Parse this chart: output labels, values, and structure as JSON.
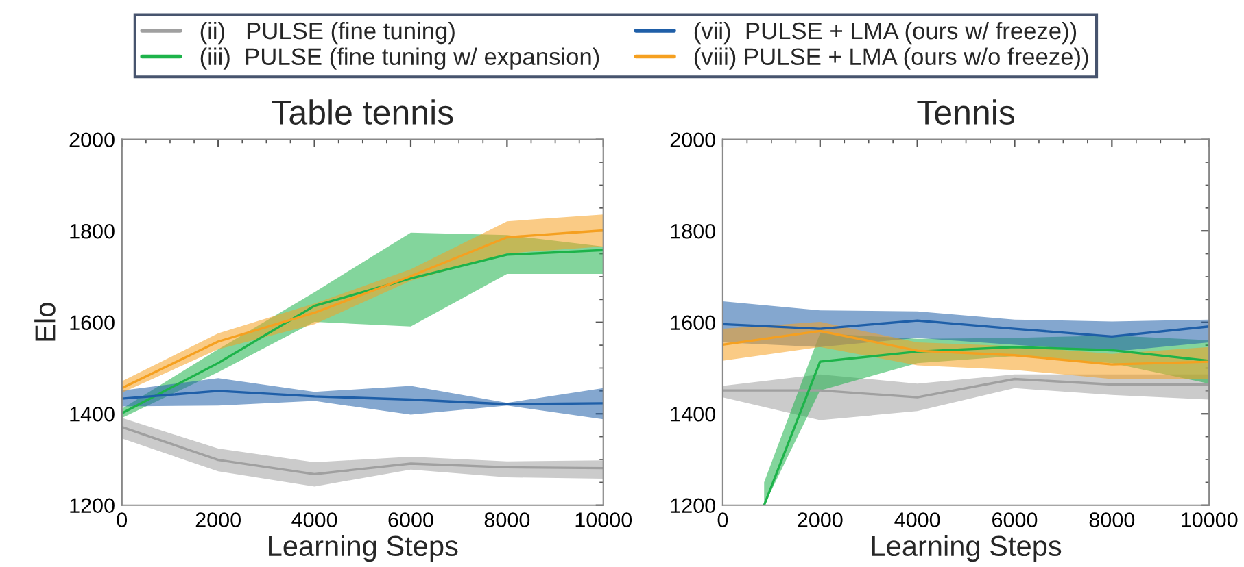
{
  "chart_data": [
    {
      "type": "line",
      "title": "Table tennis",
      "xlabel": "Learning Steps",
      "ylabel": "Elo",
      "x": [
        0,
        2000,
        4000,
        6000,
        8000,
        10000
      ],
      "xlim": [
        0,
        10000
      ],
      "ylim": [
        1200,
        2000
      ],
      "xticks": [
        0,
        2000,
        4000,
        6000,
        8000,
        10000
      ],
      "yticks": [
        1200,
        1400,
        1600,
        1800,
        2000
      ],
      "grid": false,
      "legend": "top",
      "marker": "none",
      "line_style": "solid",
      "series": [
        {
          "name": "(ii)   PULSE (fine tuning)",
          "color": "#a0a0a0",
          "values": [
            1371,
            1299,
            1268,
            1291,
            1283,
            1281
          ],
          "lower": [
            1346,
            1274,
            1241,
            1278,
            1261,
            1258
          ],
          "upper": [
            1391,
            1324,
            1294,
            1306,
            1296,
            1298
          ]
        },
        {
          "name": "(iii)  PULSE (fine tuning w/ expansion)",
          "color": "#1db34a",
          "values": [
            1401,
            1511,
            1636,
            1696,
            1748,
            1758
          ],
          "lower": [
            1391,
            1491,
            1601,
            1591,
            1706,
            1706
          ],
          "upper": [
            1411,
            1541,
            1666,
            1796,
            1791,
            1766
          ]
        },
        {
          "name": "(vii)  PULSE + LMA (ours w/ freeze))",
          "color": "#1f5fa8",
          "values": [
            1433,
            1450,
            1438,
            1431,
            1421,
            1423
          ],
          "lower": [
            1416,
            1418,
            1428,
            1398,
            1418,
            1388
          ],
          "upper": [
            1451,
            1478,
            1448,
            1461,
            1424,
            1456
          ]
        },
        {
          "name": "(viii) PULSE + LMA (ours w/o freeze))",
          "color": "#f5a020",
          "values": [
            1456,
            1558,
            1621,
            1701,
            1786,
            1801
          ],
          "lower": [
            1446,
            1541,
            1596,
            1691,
            1751,
            1766
          ],
          "upper": [
            1471,
            1576,
            1641,
            1716,
            1821,
            1836
          ]
        }
      ]
    },
    {
      "type": "line",
      "title": "Tennis",
      "xlabel": "Learning Steps",
      "x": [
        0,
        2000,
        4000,
        6000,
        8000,
        10000
      ],
      "xlim": [
        0,
        10000
      ],
      "ylim": [
        1200,
        2000
      ],
      "xticks": [
        0,
        2000,
        4000,
        6000,
        8000,
        10000
      ],
      "yticks": [
        1200,
        1400,
        1600,
        1800,
        2000
      ],
      "grid": false,
      "marker": "none",
      "line_style": "solid",
      "series": [
        {
          "color": "#a0a0a0",
          "values": [
            1451,
            1451,
            1436,
            1476,
            1464,
            1464
          ],
          "lower": [
            1436,
            1386,
            1406,
            1456,
            1441,
            1431
          ],
          "upper": [
            1461,
            1486,
            1466,
            1486,
            1486,
            1486
          ]
        },
        {
          "color": "#1db34a",
          "x": [
            850,
            2000,
            4000,
            6000,
            8000,
            10000
          ],
          "values": [
            1200,
            1514,
            1536,
            1546,
            1539,
            1516
          ],
          "lower": [
            1200,
            1451,
            1511,
            1526,
            1511,
            1466
          ],
          "upper": [
            1250,
            1576,
            1564,
            1566,
            1571,
            1561
          ]
        },
        {
          "color": "#1f5fa8",
          "values": [
            1596,
            1586,
            1604,
            1586,
            1569,
            1591
          ],
          "lower": [
            1556,
            1546,
            1566,
            1551,
            1536,
            1556
          ],
          "upper": [
            1646,
            1626,
            1624,
            1606,
            1602,
            1606
          ]
        },
        {
          "color": "#f5a020",
          "values": [
            1551,
            1581,
            1538,
            1528,
            1508,
            1514
          ],
          "lower": [
            1516,
            1546,
            1506,
            1496,
            1476,
            1476
          ],
          "upper": [
            1586,
            1601,
            1556,
            1548,
            1531,
            1546
          ]
        }
      ]
    }
  ]
}
